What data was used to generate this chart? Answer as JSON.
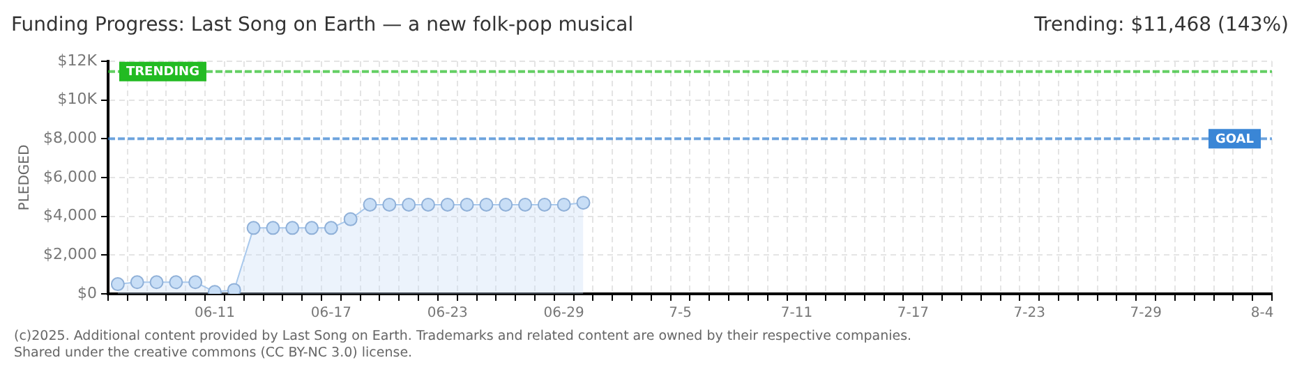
{
  "chart_data": {
    "type": "area",
    "title": "Funding Progress: Last Song on Earth — a new folk-pop musical",
    "ylabel": "PLEDGED",
    "annotations": [
      "Trending: $11,468 (143%)",
      "(c)2025. Additional content provided by Last Song on Earth. Trademarks and related content are owned by their respective companies.",
      "Shared under the creative commons (CC BY-NC 3.0) license."
    ],
    "categories": [
      null,
      null,
      null,
      null,
      null,
      "06-11",
      null,
      null,
      null,
      null,
      null,
      "06-17",
      null,
      null,
      null,
      null,
      null,
      "06-23",
      null,
      null,
      null,
      null,
      null,
      "06-29",
      null,
      null,
      null,
      null,
      null,
      "7-5",
      null,
      null,
      null,
      null,
      null,
      "7-11",
      null,
      null,
      null,
      null,
      null,
      "7-17",
      null,
      null,
      null,
      null,
      null,
      "7-23",
      null,
      null,
      null,
      null,
      null,
      "7-29",
      null,
      null,
      null,
      null,
      null,
      "8-4"
    ],
    "series": [
      {
        "color": "#a8c8ec",
        "values": [
          500,
          600,
          600,
          600,
          600,
          100,
          200,
          3400,
          3400,
          3400,
          3400,
          3400,
          3850,
          4600,
          4600,
          4600,
          4600,
          4600,
          4600,
          4600,
          4600,
          4600,
          4600,
          4600,
          4700,
          null,
          null,
          null,
          null,
          null,
          null,
          null,
          null,
          null,
          null,
          null,
          null,
          null,
          null,
          null,
          null,
          null,
          null,
          null,
          null,
          null,
          null,
          null,
          null,
          null,
          null,
          null,
          null,
          null,
          null,
          null,
          null,
          null,
          null,
          null
        ]
      }
    ],
    "ylim": [
      0,
      12000
    ],
    "yticks": [
      {
        "value": 0,
        "label": "$0"
      },
      {
        "value": 2000,
        "label": "$2,000"
      },
      {
        "value": 4000,
        "label": "$4,000"
      },
      {
        "value": 6000,
        "label": "$6,000"
      },
      {
        "value": 8000,
        "label": "$8,000"
      },
      {
        "value": 10000,
        "label": "$10K"
      },
      {
        "value": 12000,
        "label": "$12K"
      }
    ],
    "ref_lines": [
      {
        "axis": "y",
        "value": 11468,
        "label": "TRENDING",
        "color": "#22bb22",
        "line_style": "dashed"
      },
      {
        "axis": "y",
        "value": 8000,
        "label": "GOAL",
        "color": "#3a86d6",
        "line_style": "dashed"
      }
    ],
    "grid": true,
    "legend": false,
    "marker": "circle"
  }
}
